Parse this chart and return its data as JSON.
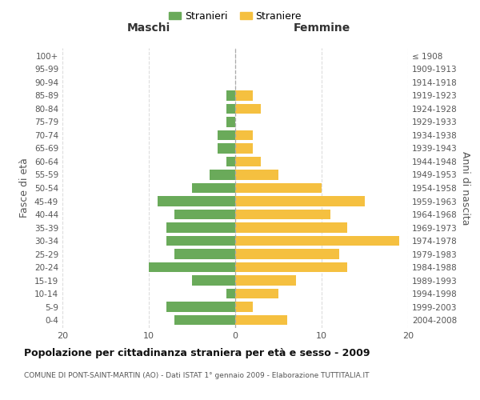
{
  "age_groups": [
    "0-4",
    "5-9",
    "10-14",
    "15-19",
    "20-24",
    "25-29",
    "30-34",
    "35-39",
    "40-44",
    "45-49",
    "50-54",
    "55-59",
    "60-64",
    "65-69",
    "70-74",
    "75-79",
    "80-84",
    "85-89",
    "90-94",
    "95-99",
    "100+"
  ],
  "birth_years": [
    "2004-2008",
    "1999-2003",
    "1994-1998",
    "1989-1993",
    "1984-1988",
    "1979-1983",
    "1974-1978",
    "1969-1973",
    "1964-1968",
    "1959-1963",
    "1954-1958",
    "1949-1953",
    "1944-1948",
    "1939-1943",
    "1934-1938",
    "1929-1933",
    "1924-1928",
    "1919-1923",
    "1914-1918",
    "1909-1913",
    "≤ 1908"
  ],
  "maschi": [
    7,
    8,
    1,
    5,
    10,
    7,
    8,
    8,
    7,
    9,
    5,
    3,
    1,
    2,
    2,
    1,
    1,
    1,
    0,
    0,
    0
  ],
  "femmine": [
    6,
    2,
    5,
    7,
    13,
    12,
    19,
    13,
    11,
    15,
    10,
    5,
    3,
    2,
    2,
    0,
    3,
    2,
    0,
    0,
    0
  ],
  "maschi_color": "#6aaa5a",
  "femmine_color": "#f5c040",
  "grid_color": "#dddddd",
  "bar_height": 0.75,
  "xlim": 20,
  "title": "Popolazione per cittadinanza straniera per età e sesso - 2009",
  "subtitle": "COMUNE DI PONT-SAINT-MARTIN (AO) - Dati ISTAT 1° gennaio 2009 - Elaborazione TUTTITALIA.IT",
  "xlabel_left": "Maschi",
  "xlabel_right": "Femmine",
  "ylabel_left": "Fasce di età",
  "ylabel_right": "Anni di nascita",
  "legend_stranieri": "Stranieri",
  "legend_straniere": "Straniere"
}
